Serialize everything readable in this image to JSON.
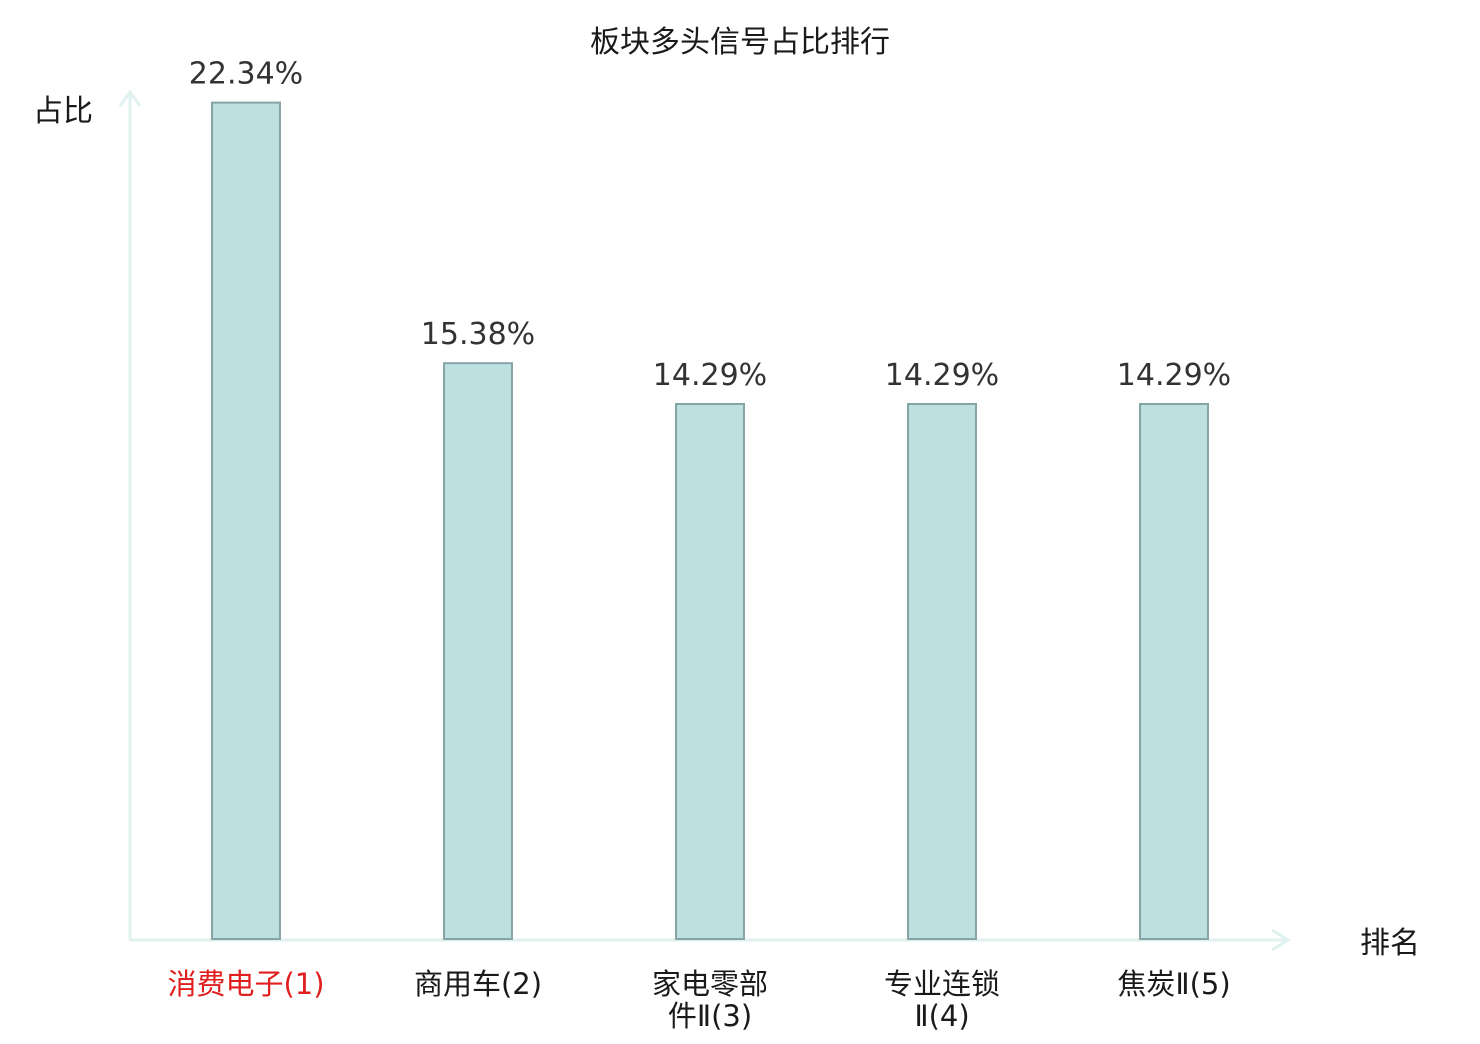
{
  "chart_data": {
    "type": "bar",
    "title": "板块多头信号占比排行",
    "xlabel": "排名",
    "ylabel": "占比",
    "categories": [
      {
        "lines": [
          "消费电子(1)"
        ],
        "highlight": true
      },
      {
        "lines": [
          "商用车(2)"
        ],
        "highlight": false
      },
      {
        "lines": [
          "家电零部",
          "件Ⅱ(3)"
        ],
        "highlight": false
      },
      {
        "lines": [
          "专业连锁",
          "Ⅱ(4)"
        ],
        "highlight": false
      },
      {
        "lines": [
          "焦炭Ⅱ(5)"
        ],
        "highlight": false
      }
    ],
    "values": [
      22.34,
      15.38,
      14.29,
      14.29,
      14.29
    ],
    "value_labels": [
      "22.34%",
      "15.38%",
      "14.29%",
      "14.29%",
      "14.29%"
    ],
    "ylim": [
      0,
      24.6
    ],
    "grid": false,
    "legend": "none",
    "colors": {
      "bar_fill": "#bde0e1",
      "bar_stroke": "#86a4a6",
      "axis": "#dff2ef",
      "text": "#1a1a1a",
      "value_label": "#333333",
      "highlight_label": "#e02020"
    }
  }
}
